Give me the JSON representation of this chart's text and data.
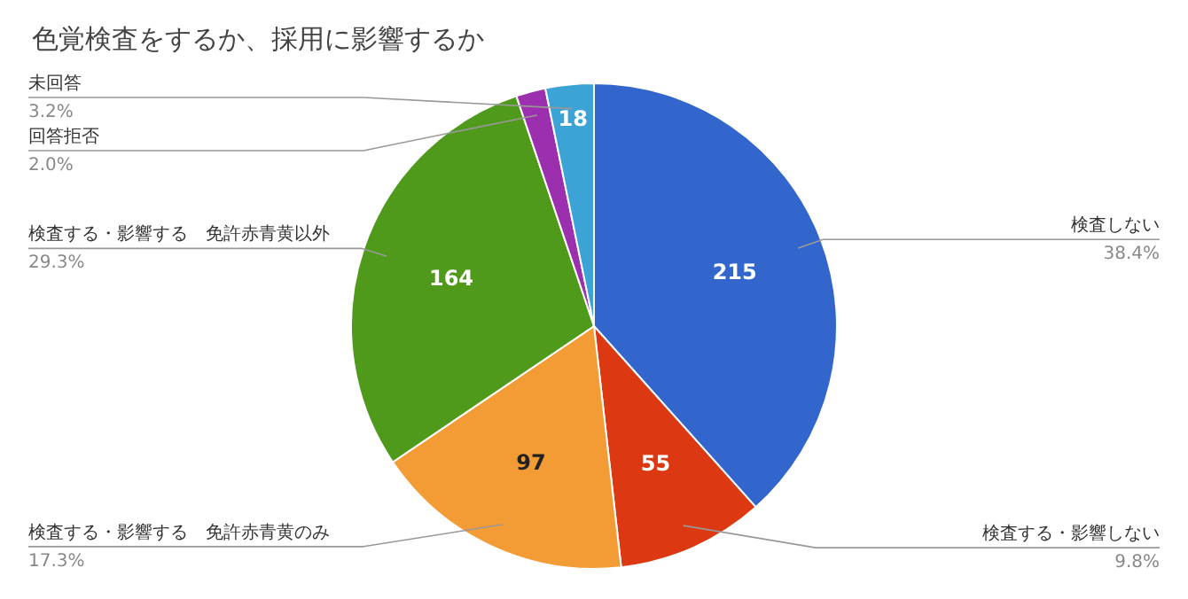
{
  "chart_data": {
    "type": "pie",
    "title": "色覚検査をするか、採用に影響するか",
    "categories": [
      "検査しない",
      "検査する・影響しない",
      "検査する・影響する　免許赤青黄のみ",
      "検査する・影響する　免許赤青黄以外",
      "回答拒否",
      "未回答"
    ],
    "values": [
      215,
      55,
      97,
      164,
      11,
      18
    ],
    "colors": [
      "#3366cc",
      "#dc3912",
      "#f39c36",
      "#4f9a1a",
      "#9b2fae",
      "#3ba3d6"
    ],
    "value_labels": [
      "215",
      "55",
      "97",
      "164",
      null,
      "18"
    ],
    "annotations": [
      "38.4%",
      "9.8%",
      "17.3%",
      "29.3%",
      "2.0%",
      "3.2%"
    ]
  }
}
